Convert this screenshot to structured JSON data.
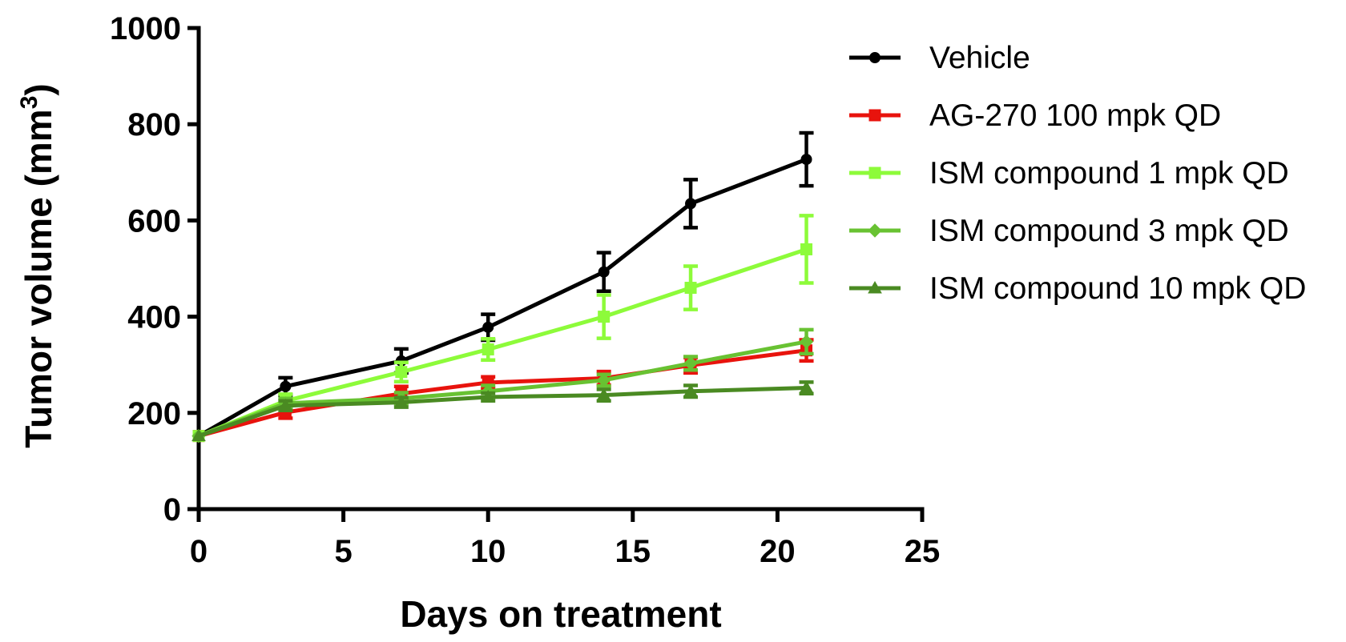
{
  "chart_data": {
    "type": "line",
    "xlabel": "Days on treatment",
    "ylabel_main": "Tumor volume (mm",
    "ylabel_sup": "3",
    "ylabel_close": ")",
    "xlim": [
      0,
      25
    ],
    "ylim": [
      0,
      1000
    ],
    "xticks": [
      0,
      5,
      10,
      15,
      20,
      25
    ],
    "yticks": [
      0,
      200,
      400,
      600,
      800,
      1000
    ],
    "grid": false,
    "legend_position": "right",
    "series": [
      {
        "name": "Vehicle",
        "color": "#000000",
        "marker": "circle",
        "x": [
          0,
          3,
          7,
          10,
          14,
          17,
          21
        ],
        "y": [
          152,
          255,
          308,
          378,
          493,
          635,
          727
        ],
        "err": [
          0,
          18,
          25,
          27,
          40,
          50,
          55
        ]
      },
      {
        "name": "AG-270 100 mpk QD",
        "color": "#e8130d",
        "marker": "square",
        "x": [
          0,
          3,
          7,
          10,
          14,
          17,
          21
        ],
        "y": [
          152,
          201,
          240,
          263,
          272,
          299,
          330
        ],
        "err": [
          0,
          12,
          15,
          12,
          14,
          16,
          22
        ]
      },
      {
        "name": "ISM compound 1 mpk QD",
        "color": "#8dfb3a",
        "marker": "square",
        "x": [
          0,
          3,
          7,
          10,
          14,
          17,
          21
        ],
        "y": [
          152,
          225,
          285,
          332,
          400,
          460,
          540
        ],
        "err": [
          0,
          14,
          20,
          22,
          45,
          45,
          70
        ]
      },
      {
        "name": "ISM compound 3 mpk QD",
        "color": "#68c232",
        "marker": "diamond",
        "x": [
          0,
          3,
          7,
          10,
          14,
          17,
          21
        ],
        "y": [
          152,
          220,
          230,
          245,
          268,
          303,
          348
        ],
        "err": [
          0,
          10,
          12,
          12,
          12,
          14,
          25
        ]
      },
      {
        "name": "ISM compound 10 mpk QD",
        "color": "#4a8a22",
        "marker": "triangle",
        "x": [
          0,
          3,
          7,
          10,
          14,
          17,
          21
        ],
        "y": [
          152,
          215,
          222,
          233,
          237,
          245,
          252
        ],
        "err": [
          0,
          10,
          10,
          8,
          12,
          12,
          12
        ]
      }
    ]
  }
}
